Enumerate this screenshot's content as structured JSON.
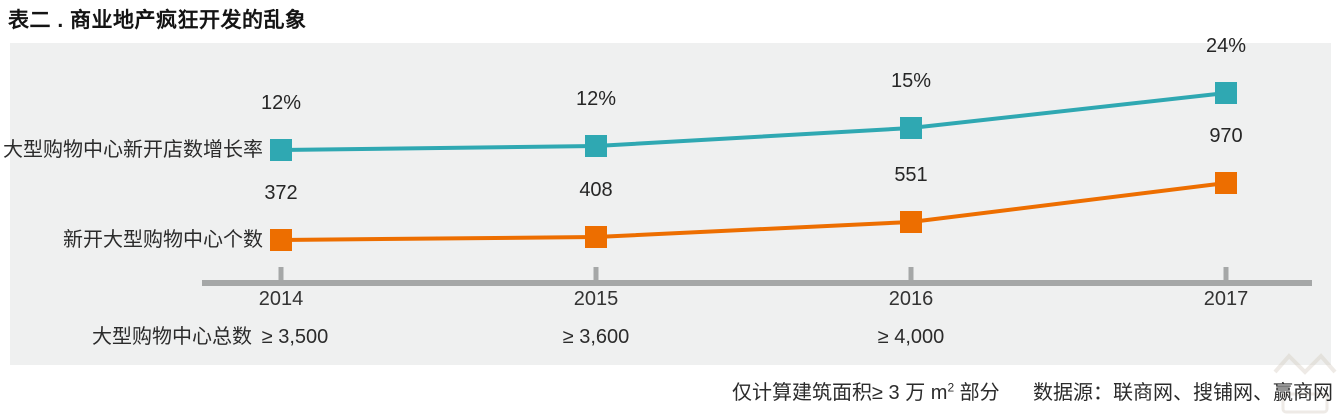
{
  "title": "表二 . 商业地产疯狂开发的乱象",
  "chart_data": {
    "type": "line",
    "categories": [
      "2014",
      "2015",
      "2016",
      "2017"
    ],
    "series": [
      {
        "name": "大型购物中心新开店数增长率",
        "values": [
          12,
          12,
          15,
          24
        ],
        "labels": [
          "12%",
          "12%",
          "15%",
          "24%"
        ],
        "unit": "%",
        "color": "#2FA8B2",
        "marker": "square"
      },
      {
        "name": "新开大型购物中心个数",
        "values": [
          372,
          408,
          551,
          970
        ],
        "labels": [
          "372",
          "408",
          "551",
          "970"
        ],
        "unit": "count",
        "color": "#ED6E00",
        "marker": "square"
      }
    ],
    "totals_row": {
      "label": "大型购物中心总数",
      "values": [
        "≥ 3,500",
        "≥ 3,600",
        "≥ 4,000",
        ""
      ]
    },
    "title": "表二 . 商业地产疯狂开发的乱象",
    "xlabel": "",
    "ylabel": "",
    "grid": false,
    "legend_position": "left-of-first-point",
    "axis_style": "single-bottom-axis-with-ticks"
  },
  "footer": {
    "note_prefix": "仅计算建筑面积≥ 3 万 m",
    "note_sup": "2",
    "note_suffix": " 部分",
    "source": "数据源：联商网、搜铺网、赢商网"
  },
  "colors": {
    "teal": "#2FA8B2",
    "orange": "#ED6E00",
    "panel_bg": "#EFF0F0",
    "axis": "#A5A7A7",
    "text": "#2B2B2B"
  }
}
